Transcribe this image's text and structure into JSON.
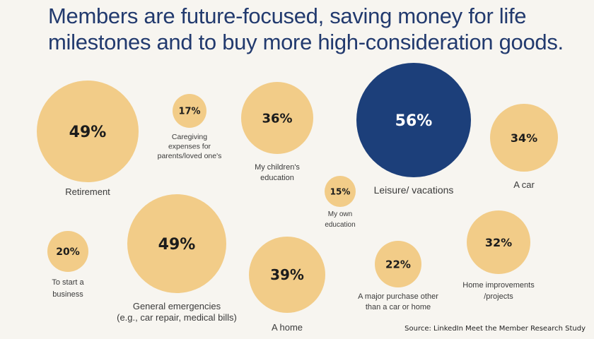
{
  "title": "Members are future-focused, saving money for life milestones and to buy more high-consideration goods.",
  "source": "Source: LinkedIn Meet the Member Research Study",
  "colors": {
    "bubble": "#f2cc88",
    "highlight": "#1c3f7a",
    "text_dark": "#1c1c1c",
    "text_light": "#ffffff",
    "background": "#f7f5f0"
  },
  "chart_data": {
    "type": "bubble",
    "unit": "%",
    "items": [
      {
        "label": "Retirement",
        "value": 49
      },
      {
        "label": "Caregiving expenses for parents/loved one's",
        "value": 17
      },
      {
        "label": "My children's education",
        "value": 36
      },
      {
        "label": "Leisure/ vacations",
        "value": 56,
        "highlight": true
      },
      {
        "label": "A car",
        "value": 34
      },
      {
        "label": "My own education",
        "value": 15
      },
      {
        "label": "To start a business",
        "value": 20
      },
      {
        "label": "General emergencies (e.g., car repair, medical bills)",
        "value": 49
      },
      {
        "label": "A home",
        "value": 39
      },
      {
        "label": "A major purchase other than a car or home",
        "value": 22
      },
      {
        "label": "Home improvements /projects",
        "value": 32
      }
    ]
  }
}
